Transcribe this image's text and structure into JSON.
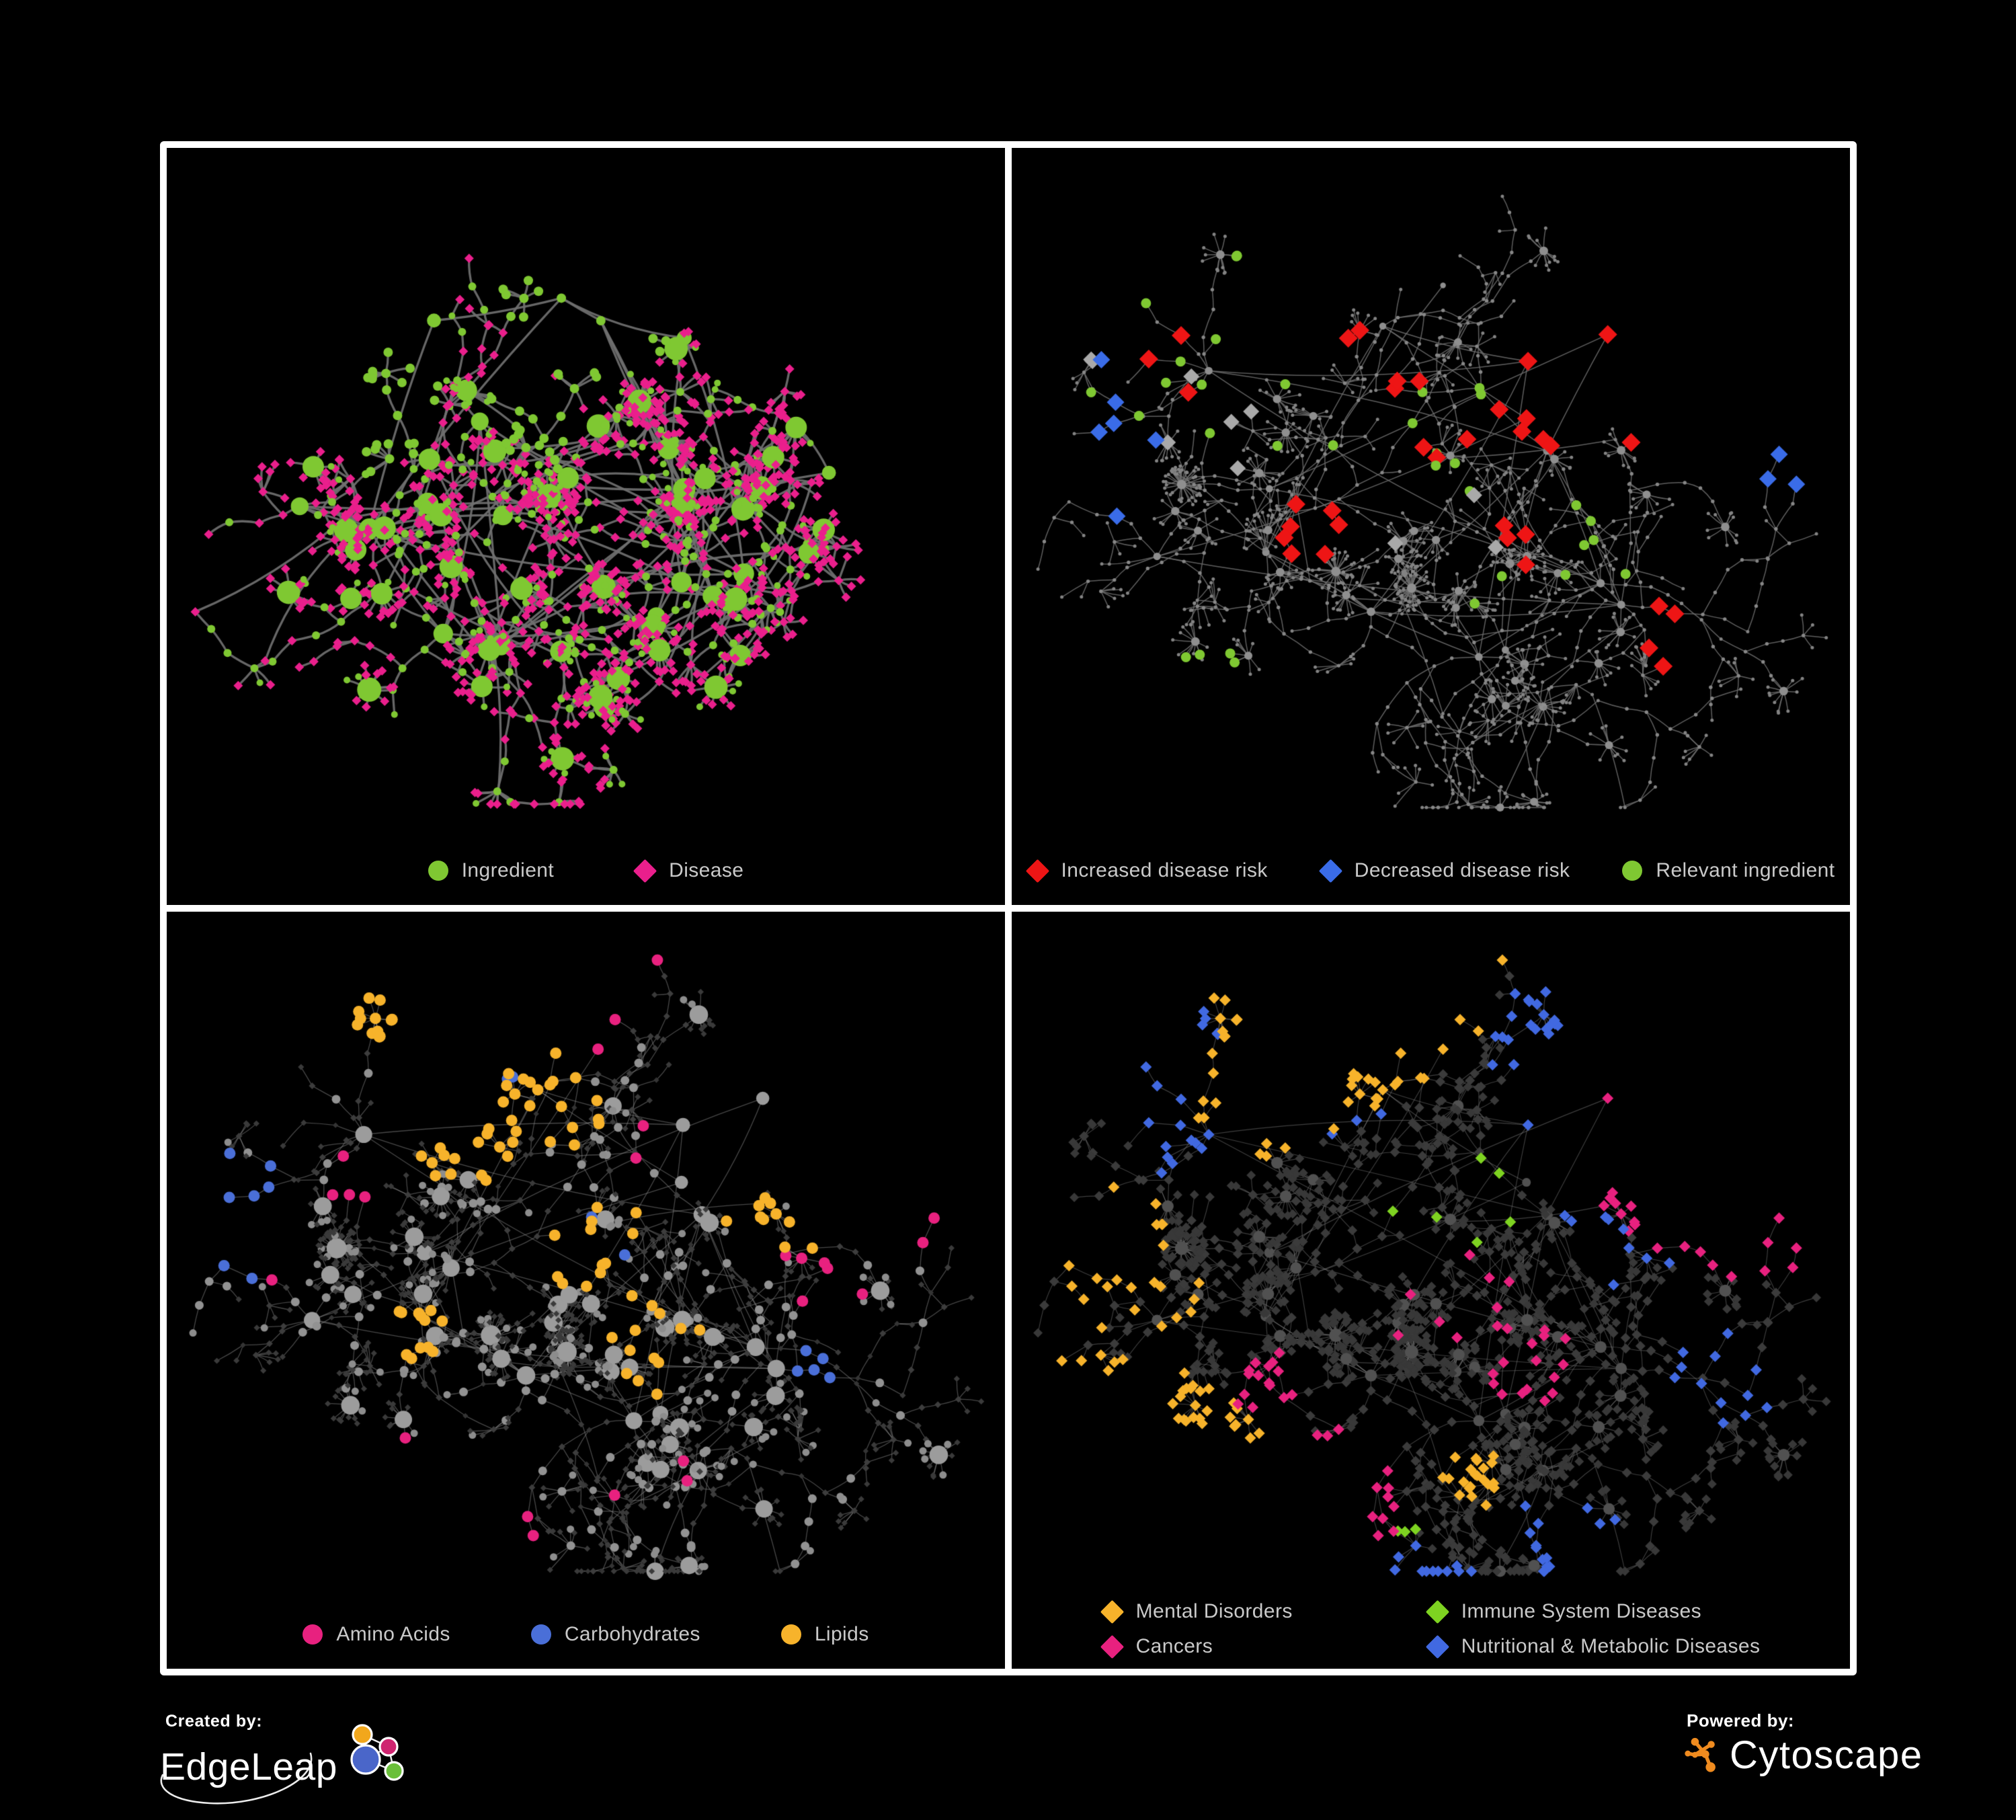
{
  "page": {
    "background": "#000000",
    "frame_color": "#ffffff",
    "legend_text_color": "#c9c9c9"
  },
  "panels": [
    {
      "id": "ingredient-disease-network",
      "legend": [
        {
          "label": "Ingredient",
          "shape": "circle",
          "color": "#7fc832"
        },
        {
          "label": "Disease",
          "shape": "diamond",
          "color": "#ea1f8c"
        }
      ],
      "net": {
        "seed": 91,
        "gen": {
          "hubs": 17,
          "spread": 340,
          "step": 31,
          "maxLen": 6,
          "minBranches": 3,
          "varBranches": 5,
          "subProb": 0.4,
          "fanProb": 0.5,
          "fanMax": 9,
          "fanDist": 27,
          "superProb": 0.06,
          "cross": 80,
          "crossDist": 300,
          "bottomPad": 150,
          "hubDegScale": 0.7,
          "hubDegMax": 9
        },
        "edge": {
          "color": "#707070",
          "w": 3.3,
          "a": 0.92,
          "curve": 0.22
        },
        "base": {
          "hub": [
            {
              "shape": "circle",
              "color": "#7fc832",
              "size": 9
            }
          ],
          "mid": [
            {
              "shape": "diamond",
              "color": "#ea1f8c",
              "size": 7,
              "p": 0.52
            },
            {
              "shape": "circle",
              "color": "#7fc832",
              "size": 6,
              "p": 0.48
            }
          ],
          "leaf": [
            {
              "shape": "diamond",
              "color": "#ea1f8c",
              "size": 7,
              "p": 0.85
            },
            {
              "shape": "circle",
              "color": "#7fc832",
              "size": 5,
              "p": 0.15
            }
          ]
        },
        "groups": [
          {
            "shape": "circle",
            "color": "#7fc832",
            "size": 7,
            "count": 55,
            "clusters": [
              [
                0.5,
                0.2,
                60
              ],
              [
                0.44,
                0.38,
                50
              ],
              [
                0.27,
                0.35,
                40
              ]
            ]
          }
        ]
      }
    },
    {
      "id": "disease-risk-network",
      "legend": [
        {
          "label": "Increased disease risk",
          "shape": "diamond",
          "color": "#ee1515"
        },
        {
          "label": "Decreased disease risk",
          "shape": "diamond",
          "color": "#3a6ce8"
        },
        {
          "label": "Relevant ingredient",
          "shape": "circle",
          "color": "#7fc832"
        }
      ],
      "net": {
        "seed": 7,
        "gen": {
          "hubs": 15,
          "spread": 360,
          "step": 32,
          "maxLen": 7,
          "minBranches": 3,
          "varBranches": 4,
          "subProb": 0.3,
          "fanProb": 0.45,
          "fanMax": 9,
          "fanDist": 25,
          "superProb": 0.06,
          "cross": 50,
          "crossDist": 240,
          "bottomPad": 145,
          "hubDegScale": 0.2,
          "hubDegMax": 3
        },
        "edge": {
          "color": "#6f6f6f",
          "w": 1.5,
          "a": 0.85,
          "curve": 0.12
        },
        "base": {
          "hub": [
            {
              "shape": "circle",
              "color": "#8f8f8f",
              "size": 4
            }
          ],
          "mid": [
            {
              "shape": "circle",
              "color": "#878787",
              "size": 2.7
            }
          ],
          "leaf": [
            {
              "shape": "circle",
              "color": "#838383",
              "size": 2.5
            }
          ]
        },
        "groups": [
          {
            "shape": "diamond",
            "color": "#ee1515",
            "size": 14,
            "count": 34,
            "clusters": [
              [
                0.42,
                0.28,
                80
              ],
              [
                0.52,
                0.38,
                60
              ],
              [
                0.17,
                0.28,
                55
              ],
              [
                0.63,
                0.33,
                50
              ],
              [
                0.36,
                0.5,
                40
              ],
              [
                0.78,
                0.63,
                35
              ],
              [
                0.85,
                0.33,
                25
              ],
              [
                0.6,
                0.52,
                40
              ]
            ]
          },
          {
            "shape": "diamond",
            "color": "#3a6ce8",
            "size": 13,
            "count": 9,
            "clusters": [
              [
                0.11,
                0.33,
                45
              ],
              [
                0.13,
                0.41,
                35
              ],
              [
                0.88,
                0.26,
                18
              ]
            ]
          },
          {
            "shape": "diamond",
            "color": "#a9a9a9",
            "size": 12,
            "count": 10,
            "clusters": [
              [
                0.28,
                0.33,
                120
              ],
              [
                0.52,
                0.48,
                100
              ],
              [
                0.12,
                0.27,
                40
              ]
            ]
          },
          {
            "shape": "circle",
            "color": "#7fc832",
            "size": 7.5,
            "count": 33,
            "clusters": [
              [
                0.34,
                0.3,
                140
              ],
              [
                0.14,
                0.3,
                70
              ],
              [
                0.52,
                0.42,
                110
              ],
              [
                0.7,
                0.52,
                60
              ],
              [
                0.23,
                0.72,
                60
              ],
              [
                0.55,
                0.6,
                60
              ]
            ]
          }
        ]
      }
    },
    {
      "id": "nutrient-class-network",
      "legend": [
        {
          "label": "Amino Acids",
          "shape": "circle",
          "color": "#e8217f"
        },
        {
          "label": "Carbohydrates",
          "shape": "circle",
          "color": "#4a6fd8"
        },
        {
          "label": "Lipids",
          "shape": "circle",
          "color": "#f7b32b"
        }
      ],
      "net": {
        "seed": 7,
        "gen": {
          "hubs": 15,
          "spread": 360,
          "step": 32,
          "maxLen": 7,
          "minBranches": 3,
          "varBranches": 4,
          "subProb": 0.3,
          "fanProb": 0.45,
          "fanMax": 9,
          "fanDist": 25,
          "superProb": 0.06,
          "cross": 50,
          "crossDist": 240,
          "bottomPad": 145,
          "hubDegScale": 0.4,
          "hubDegMax": 6
        },
        "edge": {
          "color": "#8d8d8d",
          "w": 1.3,
          "a": 0.5,
          "curve": 0.12
        },
        "base": {
          "hub": [
            {
              "shape": "circle",
              "color": "#9c9c9c",
              "size": 9
            }
          ],
          "mid": [
            {
              "shape": "diamond",
              "color": "#3d3d3d",
              "size": 5,
              "p": 0.56
            },
            {
              "shape": "circle",
              "color": "#929292",
              "size": 6.5,
              "p": 0.3
            },
            {
              "shape": "diamond",
              "color": "#343434",
              "size": 4.2,
              "p": 0.14
            }
          ],
          "leaf": [
            {
              "shape": "diamond",
              "color": "#3a3a3a",
              "size": 4.6,
              "p": 0.78
            },
            {
              "shape": "circle",
              "color": "#8d8d8d",
              "size": 5.5,
              "p": 0.22
            }
          ]
        },
        "groups": [
          {
            "shape": "circle",
            "color": "#f7b32b",
            "size": 8.5,
            "count": 95,
            "clusters": [
              [
                0.46,
                0.24,
                80
              ],
              [
                0.52,
                0.44,
                60
              ],
              [
                0.35,
                0.3,
                55
              ],
              [
                0.58,
                0.58,
                70
              ],
              [
                0.3,
                0.55,
                35
              ],
              [
                0.72,
                0.42,
                50
              ],
              [
                0.25,
                0.12,
                30
              ]
            ]
          },
          {
            "shape": "circle",
            "color": "#4a6fd8",
            "size": 8.5,
            "count": 16,
            "clusters": [
              [
                0.46,
                0.2,
                60
              ],
              [
                0.5,
                0.46,
                50
              ],
              [
                0.08,
                0.4,
                20
              ],
              [
                0.78,
                0.6,
                25
              ]
            ]
          },
          {
            "shape": "circle",
            "color": "#e8217f",
            "size": 8.5,
            "count": 24,
            "clusters": [
              [
                0.1,
                0.5,
                50
              ],
              [
                0.33,
                0.83,
                70
              ],
              [
                0.58,
                0.75,
                60
              ],
              [
                0.78,
                0.47,
                60
              ],
              [
                0.88,
                0.3,
                35
              ],
              [
                0.42,
                0.05,
                25
              ],
              [
                0.22,
                0.35,
                35
              ],
              [
                0.6,
                0.3,
                40
              ]
            ]
          }
        ]
      }
    },
    {
      "id": "disease-category-network",
      "legend": [
        {
          "label": "Mental Disorders",
          "shape": "diamond",
          "color": "#f7b32b"
        },
        {
          "label": "Immune System Diseases",
          "shape": "diamond",
          "color": "#7ed321"
        },
        {
          "label": "Cancers",
          "shape": "diamond",
          "color": "#e8217f"
        },
        {
          "label": "Nutritional & Metabolic Diseases",
          "shape": "diamond",
          "color": "#4169e1"
        }
      ],
      "net": {
        "seed": 7,
        "gen": {
          "hubs": 15,
          "spread": 360,
          "step": 32,
          "maxLen": 7,
          "minBranches": 3,
          "varBranches": 4,
          "subProb": 0.3,
          "fanProb": 0.45,
          "fanMax": 9,
          "fanDist": 25,
          "superProb": 0.06,
          "cross": 50,
          "crossDist": 240,
          "bottomPad": 145,
          "hubDegScale": 0.25,
          "hubDegMax": 4
        },
        "edge": {
          "color": "#8a8a8a",
          "w": 1.15,
          "a": 0.45,
          "curve": 0.12
        },
        "base": {
          "hub": [
            {
              "shape": "circle",
              "color": "#515151",
              "size": 6
            }
          ],
          "mid": [
            {
              "shape": "diamond",
              "color": "#3b3b3b",
              "size": 7.4
            }
          ],
          "leaf": [
            {
              "shape": "diamond",
              "color": "#383838",
              "size": 7
            }
          ]
        },
        "groups": [
          {
            "shape": "diamond",
            "color": "#f7b32b",
            "size": 8.5,
            "count": 115,
            "clusters": [
              [
                0.16,
                0.48,
                95
              ],
              [
                0.3,
                0.2,
                80
              ],
              [
                0.12,
                0.84,
                35
              ],
              [
                0.42,
                0.1,
                50
              ],
              [
                0.55,
                0.75,
                30
              ]
            ]
          },
          {
            "shape": "diamond",
            "color": "#e8217f",
            "size": 8.5,
            "count": 72,
            "clusters": [
              [
                0.53,
                0.52,
                95
              ],
              [
                0.62,
                0.6,
                60
              ],
              [
                0.87,
                0.25,
                40
              ],
              [
                0.42,
                0.78,
                45
              ],
              [
                0.3,
                0.62,
                30
              ]
            ]
          },
          {
            "shape": "diamond",
            "color": "#4169e1",
            "size": 8.5,
            "count": 88,
            "clusters": [
              [
                0.28,
                0.07,
                90
              ],
              [
                0.73,
                0.4,
                80
              ],
              [
                0.6,
                0.2,
                60
              ],
              [
                0.85,
                0.62,
                70
              ],
              [
                0.5,
                0.93,
                50
              ],
              [
                0.9,
                0.12,
                40
              ],
              [
                0.18,
                0.3,
                40
              ],
              [
                0.65,
                0.85,
                50
              ]
            ]
          },
          {
            "shape": "diamond",
            "color": "#7ed321",
            "size": 8.5,
            "count": 9,
            "clusters": [
              [
                0.5,
                0.38,
                110
              ],
              [
                0.35,
                0.9,
                40
              ]
            ]
          }
        ]
      }
    }
  ],
  "footer": {
    "created_by_label": "Created by:",
    "edgeleap_brand": "EdgeLeap",
    "edgeleap_colors": {
      "blue": "#4a66c9",
      "orange": "#f2a71c",
      "magenta": "#cf2470",
      "green": "#6abf3a",
      "line": "#ffffff"
    },
    "powered_by_label": "Powered by:",
    "cytoscape_brand": "Cytoscape",
    "cytoscape_color": "#ef8b1f"
  }
}
